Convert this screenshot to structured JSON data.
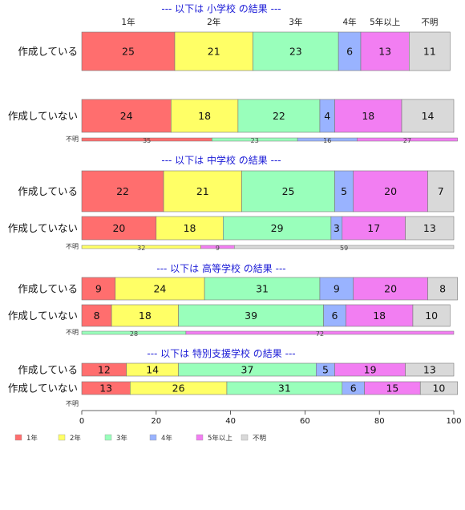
{
  "chart_data": {
    "type": "bar",
    "orientation": "horizontal",
    "stacked": true,
    "normalized": true,
    "categories": [
      "1年",
      "2年",
      "3年",
      "4年",
      "5年以上",
      "不明"
    ],
    "colors": [
      "#ff6e6e",
      "#ffff66",
      "#99ffbb",
      "#99b3ff",
      "#f27ef2",
      "#d9d9d9"
    ],
    "xlim": [
      0,
      100
    ],
    "xticks": [
      0,
      20,
      40,
      60,
      80,
      100
    ],
    "legend_position": "bottom-left",
    "groups": [
      {
        "title": "--- 以下は 小学校 の結果 ---",
        "show_category_header": true,
        "rows": [
          {
            "label": "作成している",
            "size": "large",
            "values": [
              25,
              21,
              23,
              6,
              13,
              11
            ]
          },
          {
            "label": "作成していない",
            "size": "large",
            "values": [
              24,
              18,
              22,
              4,
              18,
              14
            ]
          },
          {
            "label": "不明",
            "size": "small",
            "values": [
              35,
              0,
              23,
              16,
              27,
              0
            ]
          }
        ]
      },
      {
        "title": "--- 以下は 中学校 の結果 ---",
        "show_category_header": false,
        "rows": [
          {
            "label": "作成している",
            "size": "large",
            "values": [
              22,
              21,
              25,
              5,
              20,
              7
            ]
          },
          {
            "label": "作成していない",
            "size": "large",
            "values": [
              20,
              18,
              29,
              3,
              17,
              13
            ]
          },
          {
            "label": "不明",
            "size": "small",
            "values": [
              0,
              32,
              0,
              0,
              9,
              59
            ]
          }
        ]
      },
      {
        "title": "--- 以下は 高等学校 の結果 ---",
        "show_category_header": false,
        "rows": [
          {
            "label": "作成している",
            "size": "large",
            "values": [
              9,
              24,
              31,
              9,
              20,
              8
            ]
          },
          {
            "label": "作成していない",
            "size": "large",
            "values": [
              8,
              18,
              39,
              6,
              18,
              10
            ]
          },
          {
            "label": "不明",
            "size": "small",
            "values": [
              0,
              0,
              28,
              0,
              72,
              0
            ]
          }
        ]
      },
      {
        "title": "--- 以下は 特別支援学校 の結果 ---",
        "show_category_header": false,
        "rows": [
          {
            "label": "作成している",
            "size": "medium",
            "values": [
              12,
              14,
              37,
              5,
              19,
              13
            ]
          },
          {
            "label": "作成していない",
            "size": "medium",
            "values": [
              13,
              26,
              31,
              6,
              15,
              10
            ]
          },
          {
            "label": "不明",
            "size": "empty",
            "values": [
              0,
              0,
              0,
              0,
              0,
              0
            ]
          }
        ]
      }
    ]
  }
}
